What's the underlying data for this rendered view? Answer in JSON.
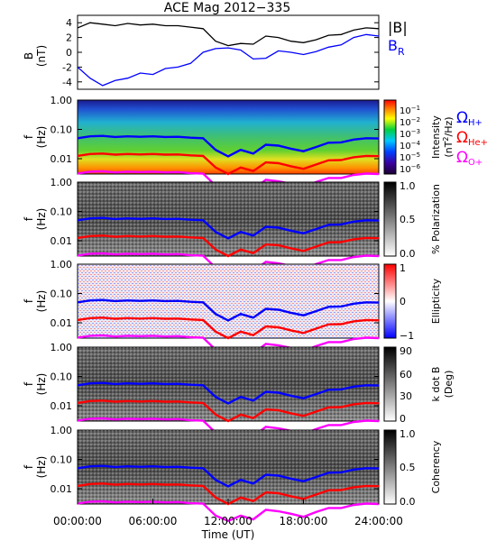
{
  "title": "ACE Mag 2012−335",
  "time_axis": {
    "ticks": [
      "00:00:00",
      "06:00:00",
      "12:00:00",
      "18:00:00",
      "24:00:00"
    ],
    "label": "Time (UT)"
  },
  "freq_ticks": [
    "1.00",
    "0.10",
    "0.01"
  ],
  "panel1": {
    "ylabel_top": "B",
    "ylabel_bottom": "(nT)",
    "yticks": [
      "4",
      "2",
      "0",
      "-2",
      "-4"
    ],
    "legend": {
      "b_mag": "|B|",
      "b_r": "B",
      "b_r_sub": "R"
    },
    "colors": {
      "b_mag": "#000000",
      "b_r": "#0000ff"
    }
  },
  "gyro_labels": [
    {
      "symbol": "Ω",
      "sub": "H+",
      "color": "#0000ff"
    },
    {
      "symbol": "Ω",
      "sub": "He+",
      "color": "#ff0000"
    },
    {
      "symbol": "Ω",
      "sub": "O+",
      "color": "#ff00ff"
    }
  ],
  "colorbars": {
    "intensity": {
      "label_1": "Intensity",
      "label_2_pre": "(nT",
      "label_2_sup": "2",
      "label_2_post": "/Hz)",
      "ticks": [
        {
          "base": "10",
          "exp": "−1"
        },
        {
          "base": "10",
          "exp": "−2"
        },
        {
          "base": "10",
          "exp": "−3"
        },
        {
          "base": "10",
          "exp": "−4"
        },
        {
          "base": "10",
          "exp": "−5"
        },
        {
          "base": "10",
          "exp": "−6"
        }
      ]
    },
    "polarization": {
      "label": "% Polarization",
      "ticks": [
        "1.0",
        "0.5",
        "0.0"
      ]
    },
    "ellipticity": {
      "label": "Ellipticity",
      "ticks": [
        "1",
        "0",
        "−1"
      ]
    },
    "kdotb": {
      "label_1": "k dot B",
      "label_2": "(Deg)",
      "ticks": [
        "90",
        "60",
        "30",
        "0"
      ]
    },
    "coherency": {
      "label": "Coherency",
      "ticks": [
        "1.0",
        "0.5",
        "0.0"
      ]
    }
  },
  "chart_data": {
    "type": "line",
    "x_unit": "hours UT",
    "xlim": [
      0,
      24
    ],
    "field": {
      "ylim": [
        -5,
        5
      ],
      "series": [
        {
          "name": "|B|",
          "x": [
            0,
            1,
            2,
            3,
            4,
            5,
            6,
            7,
            8,
            9,
            10,
            11,
            12,
            13,
            14,
            15,
            16,
            17,
            18,
            19,
            20,
            21,
            22,
            23,
            24
          ],
          "y": [
            3.3,
            4.0,
            3.8,
            3.6,
            3.9,
            3.7,
            3.8,
            3.6,
            3.6,
            3.4,
            3.2,
            1.5,
            0.9,
            1.2,
            1.1,
            2.2,
            2.0,
            1.5,
            1.3,
            1.7,
            2.3,
            2.4,
            3.0,
            3.3,
            3.2
          ]
        },
        {
          "name": "B_R",
          "x": [
            0,
            1,
            2,
            3,
            4,
            5,
            6,
            7,
            8,
            9,
            10,
            11,
            12,
            13,
            14,
            15,
            16,
            17,
            18,
            19,
            20,
            21,
            22,
            23,
            24
          ],
          "y": [
            -2.0,
            -3.5,
            -4.5,
            -3.8,
            -3.5,
            -2.8,
            -3.0,
            -2.2,
            -2.0,
            -1.5,
            0.0,
            0.5,
            0.6,
            0.3,
            -0.9,
            -0.8,
            0.2,
            0.0,
            -0.3,
            0.1,
            0.7,
            1.0,
            2.0,
            2.4,
            2.2
          ]
        }
      ]
    },
    "gyrofrequencies_hz": [
      {
        "name": "ΩH+",
        "x": [
          0,
          1,
          2,
          3,
          4,
          5,
          6,
          7,
          8,
          9,
          10,
          11,
          12,
          13,
          14,
          15,
          16,
          17,
          18,
          19,
          20,
          21,
          22,
          23,
          24
        ],
        "y": [
          0.05,
          0.058,
          0.06,
          0.055,
          0.058,
          0.056,
          0.058,
          0.055,
          0.056,
          0.052,
          0.05,
          0.02,
          0.012,
          0.02,
          0.015,
          0.03,
          0.028,
          0.022,
          0.018,
          0.025,
          0.035,
          0.036,
          0.045,
          0.05,
          0.049
        ]
      },
      {
        "name": "ΩHe+",
        "x": [
          0,
          1,
          2,
          3,
          4,
          5,
          6,
          7,
          8,
          9,
          10,
          11,
          12,
          13,
          14,
          15,
          16,
          17,
          18,
          19,
          20,
          21,
          22,
          23,
          24
        ],
        "y": [
          0.0125,
          0.0145,
          0.015,
          0.0138,
          0.0145,
          0.014,
          0.0145,
          0.0138,
          0.014,
          0.013,
          0.0125,
          0.005,
          0.003,
          0.005,
          0.0038,
          0.0075,
          0.007,
          0.0055,
          0.0045,
          0.0063,
          0.0088,
          0.009,
          0.0112,
          0.0125,
          0.0122
        ]
      },
      {
        "name": "ΩO+",
        "x": [
          0,
          1,
          2,
          3,
          4,
          5,
          6,
          7,
          8,
          9,
          10,
          11,
          12,
          13,
          14,
          15,
          16,
          17,
          18,
          19,
          20,
          21,
          22,
          23,
          24
        ],
        "y": [
          0.0031,
          0.0036,
          0.0037,
          0.0034,
          0.0036,
          0.0035,
          0.0036,
          0.0034,
          0.0035,
          0.0032,
          0.0031,
          0.0012,
          0.0008,
          0.0012,
          0.0009,
          0.0019,
          0.0017,
          0.0014,
          0.0011,
          0.0016,
          0.0022,
          0.0022,
          0.0028,
          0.0031,
          0.003
        ]
      }
    ],
    "spectrogram_ylim_hz": [
      0.003,
      1.0
    ],
    "colorbar_ranges": {
      "intensity": [
        1e-06,
        0.1
      ],
      "polarization": [
        0,
        1
      ],
      "ellipticity": [
        -1,
        1
      ],
      "kdotb_deg": [
        0,
        90
      ],
      "coherency": [
        0,
        1
      ]
    }
  }
}
